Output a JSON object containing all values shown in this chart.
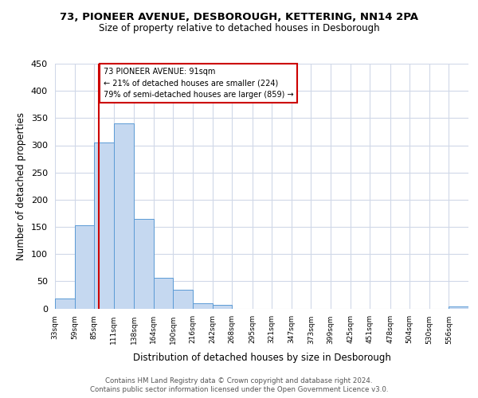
{
  "title": "73, PIONEER AVENUE, DESBOROUGH, KETTERING, NN14 2PA",
  "subtitle": "Size of property relative to detached houses in Desborough",
  "xlabel": "Distribution of detached houses by size in Desborough",
  "ylabel": "Number of detached properties",
  "bin_edges": [
    33,
    59,
    85,
    111,
    138,
    164,
    190,
    216,
    242,
    268,
    295,
    321,
    347,
    373,
    399,
    425,
    451,
    478,
    504,
    530,
    556
  ],
  "bar_heights": [
    18,
    153,
    305,
    340,
    165,
    57,
    35,
    10,
    6,
    0,
    0,
    0,
    0,
    0,
    0,
    0,
    0,
    0,
    0,
    0,
    3
  ],
  "bar_color": "#c5d8f0",
  "bar_edge_color": "#5b9bd5",
  "vline_x": 91,
  "vline_color": "#cc0000",
  "annotation_line1": "73 PIONEER AVENUE: 91sqm",
  "annotation_line2": "← 21% of detached houses are smaller (224)",
  "annotation_line3": "79% of semi-detached houses are larger (859) →",
  "annotation_box_color": "#ffffff",
  "annotation_box_edge": "#cc0000",
  "ylim": [
    0,
    450
  ],
  "yticks": [
    0,
    50,
    100,
    150,
    200,
    250,
    300,
    350,
    400,
    450
  ],
  "background_color": "#ffffff",
  "grid_color": "#d0d8e8",
  "footer1": "Contains HM Land Registry data © Crown copyright and database right 2024.",
  "footer2": "Contains public sector information licensed under the Open Government Licence v3.0."
}
